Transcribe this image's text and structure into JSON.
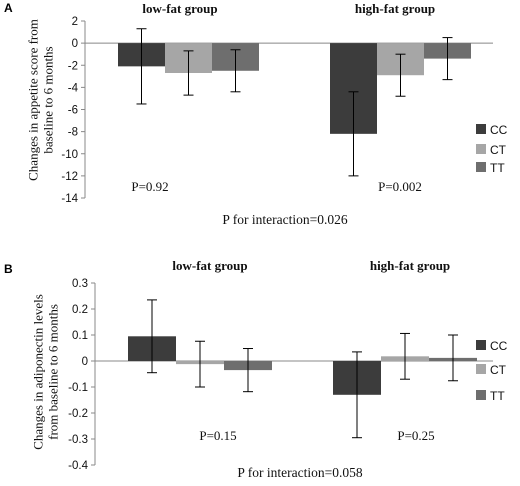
{
  "chart_data": [
    {
      "panel": "A",
      "type": "bar",
      "ylabel": "Changes in appetite score from baseline to 6 months",
      "ylim": [
        -14,
        2
      ],
      "yticks": [
        "2",
        "0",
        "-2",
        "-4",
        "-6",
        "-8",
        "-10",
        "-12",
        "-14"
      ],
      "categories": [
        "low-fat group",
        "high-fat group"
      ],
      "series": [
        {
          "name": "CC",
          "values": [
            -2.1,
            -8.2
          ],
          "errors": [
            3.4,
            3.8
          ],
          "color": "#3c3c3c"
        },
        {
          "name": "CT",
          "values": [
            -2.7,
            -2.9
          ],
          "errors": [
            2.0,
            1.9
          ],
          "color": "#a6a6a6"
        },
        {
          "name": "TT",
          "values": [
            -2.5,
            -1.4
          ],
          "errors": [
            1.9,
            1.9
          ],
          "color": "#6e6e6e"
        }
      ],
      "pvalues": [
        "P=0.92",
        "P=0.002"
      ],
      "interaction": "P for interaction=0.026",
      "legend": "right"
    },
    {
      "panel": "B",
      "type": "bar",
      "ylabel": "Changes in adiponectin levels from baseline to 6 months",
      "ylim": [
        -0.4,
        0.3
      ],
      "yticks": [
        "0.3",
        "0.2",
        "0.1",
        "0",
        "-0.1",
        "-0.2",
        "-0.3",
        "-0.4"
      ],
      "categories": [
        "low-fat group",
        "high-fat group"
      ],
      "series": [
        {
          "name": "CC",
          "values": [
            0.095,
            -0.13
          ],
          "errors": [
            0.14,
            0.165
          ],
          "color": "#3c3c3c"
        },
        {
          "name": "CT",
          "values": [
            -0.012,
            0.018
          ],
          "errors": [
            0.088,
            0.088
          ],
          "color": "#a6a6a6"
        },
        {
          "name": "TT",
          "values": [
            -0.035,
            0.012
          ],
          "errors": [
            0.083,
            0.088
          ],
          "color": "#6e6e6e"
        }
      ],
      "pvalues": [
        "P=0.15",
        "P=0.25"
      ],
      "interaction": "P for interaction=0.058",
      "legend": "right"
    }
  ]
}
